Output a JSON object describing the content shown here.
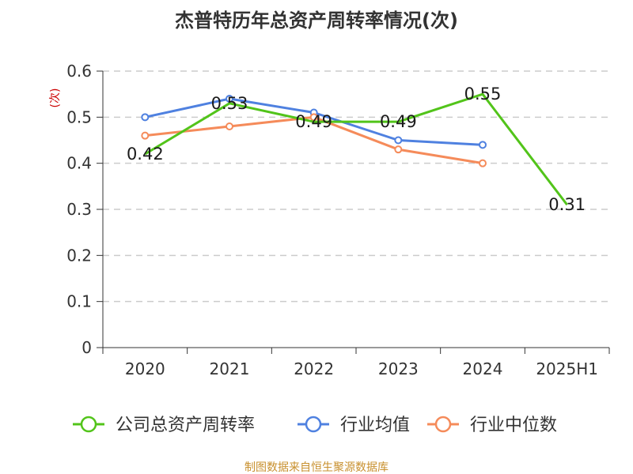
{
  "chart_data": {
    "type": "line",
    "title": "杰普特历年总资产周转率情况(次)",
    "ylabel": "(次)",
    "xlabel": "",
    "categories": [
      "2020",
      "2021",
      "2022",
      "2023",
      "2024",
      "2025H1"
    ],
    "ylim": [
      0,
      0.6
    ],
    "yticks": [
      "0",
      "0.1",
      "0.2",
      "0.3",
      "0.4",
      "0.5",
      "0.6"
    ],
    "grid": true,
    "legend_position": "bottom",
    "series": [
      {
        "name": "公司总资产周转率",
        "color": "#52c41a",
        "values": [
          0.42,
          0.53,
          0.49,
          0.49,
          0.55,
          0.31
        ],
        "labels": [
          "0.42",
          "0.53",
          "0.49",
          "0.49",
          "0.55",
          "0.31"
        ],
        "markers": false
      },
      {
        "name": "行业均值",
        "color": "#4f81e0",
        "values": [
          0.5,
          0.54,
          0.51,
          0.45,
          0.44,
          null
        ],
        "markers": true
      },
      {
        "name": "行业中位数",
        "color": "#f58b5a",
        "values": [
          0.46,
          0.48,
          0.5,
          0.43,
          0.4,
          null
        ],
        "markers": true
      }
    ],
    "source": "制图数据来自恒生聚源数据库"
  }
}
